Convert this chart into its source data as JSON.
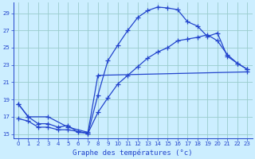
{
  "title": "Graphe des températures (°c)",
  "bg_color": "#cceeff",
  "grid_color": "#99cccc",
  "line_color": "#2244cc",
  "xlim": [
    -0.5,
    23.5
  ],
  "ylim": [
    14.5,
    30.2
  ],
  "xticks": [
    0,
    1,
    2,
    3,
    4,
    5,
    6,
    7,
    8,
    9,
    10,
    11,
    12,
    13,
    14,
    15,
    16,
    17,
    18,
    19,
    20,
    21,
    22,
    23
  ],
  "yticks": [
    15,
    17,
    19,
    21,
    23,
    25,
    27,
    29
  ],
  "curve1_x": [
    0,
    1,
    2,
    3,
    4,
    5,
    6,
    7,
    8,
    9,
    10,
    11,
    12,
    13,
    14,
    15,
    16,
    17,
    18,
    19,
    20,
    21,
    22,
    23
  ],
  "curve1_y": [
    18.5,
    17.0,
    16.2,
    16.2,
    15.8,
    16.0,
    15.2,
    15.1,
    19.5,
    23.5,
    25.3,
    27.0,
    28.5,
    29.3,
    29.7,
    29.6,
    29.4,
    28.0,
    27.5,
    26.3,
    26.7,
    24.0,
    23.2,
    22.5
  ],
  "curve2_x": [
    0,
    1,
    2,
    3,
    4,
    5,
    6,
    7,
    8,
    9,
    10,
    11,
    12,
    13,
    14,
    15,
    16,
    17,
    18,
    19,
    20,
    21,
    22,
    23
  ],
  "curve2_y": [
    16.8,
    16.5,
    15.8,
    15.8,
    15.5,
    15.5,
    15.3,
    15.1,
    17.5,
    19.2,
    20.8,
    21.8,
    22.8,
    23.8,
    24.5,
    25.0,
    25.8,
    26.0,
    26.2,
    26.5,
    25.8,
    24.2,
    23.2,
    22.5
  ],
  "curve3_x": [
    0,
    1,
    3,
    5,
    7,
    8,
    23
  ],
  "curve3_y": [
    18.5,
    17.0,
    17.0,
    15.8,
    15.2,
    21.8,
    22.2
  ]
}
